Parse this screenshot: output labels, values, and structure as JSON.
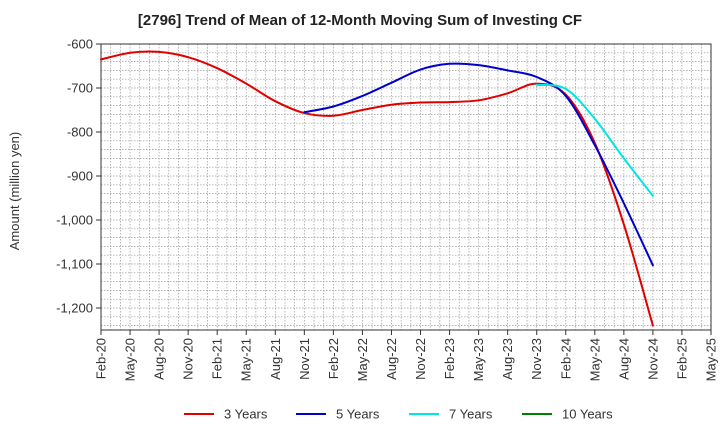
{
  "chart_data": {
    "type": "line",
    "title": "[2796]  Trend of Mean of 12-Month Moving Sum of Investing CF",
    "ylabel": "Amount (million yen)",
    "xlabel": "",
    "ylim": [
      -1250,
      -600
    ],
    "y_ticks": [
      -600,
      -700,
      -800,
      -900,
      -1000,
      -1100,
      -1200
    ],
    "y_tick_labels": [
      "-600",
      "-700",
      "-800",
      "-900",
      "-1,000",
      "-1,100",
      "-1,200"
    ],
    "x_labels": [
      "Feb-20",
      "May-20",
      "Aug-20",
      "Nov-20",
      "Feb-21",
      "May-21",
      "Aug-21",
      "Nov-21",
      "Feb-22",
      "May-22",
      "Aug-22",
      "Nov-22",
      "Feb-23",
      "May-23",
      "Aug-23",
      "Nov-23",
      "Feb-24",
      "May-24",
      "Aug-24",
      "Nov-24",
      "Feb-25",
      "May-25"
    ],
    "grid": true,
    "legend_position": "bottom",
    "series": [
      {
        "name": "3 Years",
        "color": "#e00000",
        "points": [
          [
            0,
            -635
          ],
          [
            1,
            -620
          ],
          [
            2,
            -618
          ],
          [
            3,
            -630
          ],
          [
            4,
            -655
          ],
          [
            5,
            -690
          ],
          [
            6,
            -730
          ],
          [
            7,
            -757
          ],
          [
            8,
            -763
          ],
          [
            9,
            -750
          ],
          [
            10,
            -738
          ],
          [
            11,
            -733
          ],
          [
            12,
            -732
          ],
          [
            13,
            -728
          ],
          [
            14,
            -712
          ],
          [
            15,
            -690
          ],
          [
            16,
            -715
          ],
          [
            17,
            -825
          ],
          [
            18,
            -1010
          ],
          [
            19,
            -1240
          ]
        ]
      },
      {
        "name": "5 Years",
        "color": "#0000cc",
        "points": [
          [
            7,
            -755
          ],
          [
            8,
            -742
          ],
          [
            9,
            -718
          ],
          [
            10,
            -688
          ],
          [
            11,
            -658
          ],
          [
            12,
            -645
          ],
          [
            13,
            -648
          ],
          [
            14,
            -660
          ],
          [
            15,
            -675
          ],
          [
            16,
            -718
          ],
          [
            17,
            -830
          ],
          [
            18,
            -962
          ],
          [
            19,
            -1103
          ]
        ]
      },
      {
        "name": "7 Years",
        "color": "#00e5e5",
        "points": [
          [
            15,
            -693
          ],
          [
            16,
            -702
          ],
          [
            17,
            -770
          ],
          [
            18,
            -860
          ],
          [
            19,
            -945
          ]
        ]
      },
      {
        "name": "10 Years",
        "color": "#008000",
        "points": []
      }
    ]
  }
}
